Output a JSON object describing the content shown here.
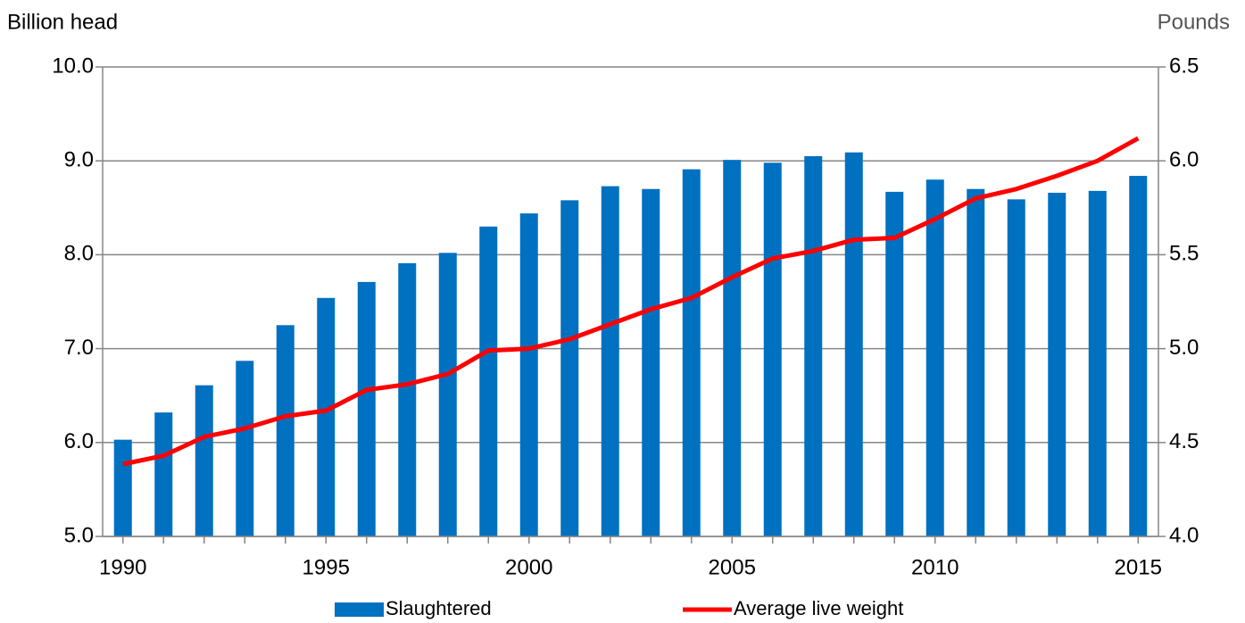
{
  "chart_data": {
    "type": "bar-line",
    "ylabel": "Billion head",
    "y2label": "Pounds",
    "x": [
      1990,
      1991,
      1992,
      1993,
      1994,
      1995,
      1996,
      1997,
      1998,
      1999,
      2000,
      2001,
      2002,
      2003,
      2004,
      2005,
      2006,
      2007,
      2008,
      2009,
      2010,
      2011,
      2012,
      2013,
      2014,
      2015
    ],
    "xlim": [
      1989.5,
      2015.5
    ],
    "xticks": [
      1990,
      1995,
      2000,
      2005,
      2010,
      2015
    ],
    "ylim": [
      5,
      10
    ],
    "yticks": [
      {
        "value": 5,
        "label": "5.0"
      },
      {
        "value": 6,
        "label": "6.0"
      },
      {
        "value": 7,
        "label": "7.0"
      },
      {
        "value": 8,
        "label": "8.0"
      },
      {
        "value": 9,
        "label": "9.0"
      },
      {
        "value": 10,
        "label": "10.0"
      }
    ],
    "y2lim": [
      4,
      6.5
    ],
    "y2ticks": [
      {
        "value": 4,
        "label": "4.0"
      },
      {
        "value": 4.5,
        "label": "4.5"
      },
      {
        "value": 5,
        "label": "5.0"
      },
      {
        "value": 5.5,
        "label": "5.5"
      },
      {
        "value": 6,
        "label": "6.0"
      },
      {
        "value": 6.5,
        "label": "6.5"
      }
    ],
    "grid": true,
    "legend": "bottom",
    "series": [
      {
        "name": "Slaughtered",
        "type": "bar",
        "color": "#0070c0",
        "values": [
          6.03,
          6.32,
          6.61,
          6.87,
          7.25,
          7.54,
          7.71,
          7.91,
          8.02,
          8.3,
          8.44,
          8.58,
          8.73,
          8.7,
          8.91,
          9.01,
          8.98,
          9.05,
          9.09,
          8.67,
          8.8,
          8.7,
          8.59,
          8.66,
          8.68,
          8.84
        ]
      },
      {
        "name": "Average live weight",
        "type": "line",
        "axis": "y2",
        "color": "#ff0000",
        "values": [
          4.385,
          4.43,
          4.53,
          4.575,
          4.64,
          4.67,
          4.78,
          4.81,
          4.865,
          4.99,
          5.0,
          5.05,
          5.13,
          5.21,
          5.27,
          5.38,
          5.48,
          5.52,
          5.58,
          5.59,
          5.69,
          5.8,
          5.85,
          5.92,
          6.0,
          6.12
        ]
      }
    ]
  }
}
